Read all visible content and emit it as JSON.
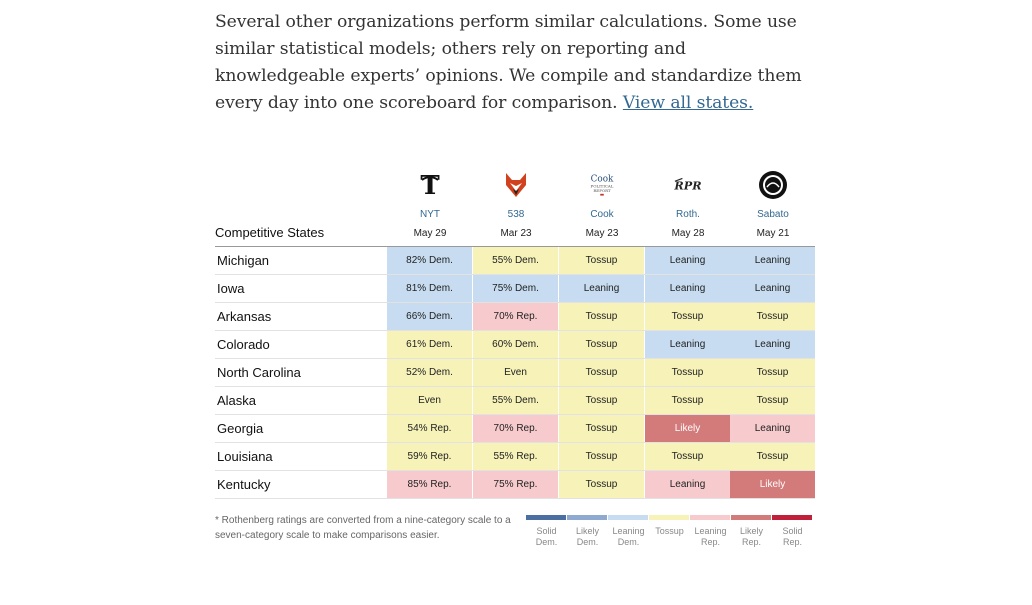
{
  "intro": {
    "text": "Several other organizations perform similar calculations. Some use similar statistical models; others rely on reporting and knowledgeable experts’ opinions. We compile and standardize them every day into one scoreboard for comparison.",
    "link_text": "View all states."
  },
  "chart_data": {
    "type": "table",
    "row_header": "Competitive States",
    "columns": [
      {
        "name": "NYT",
        "date": "May 29",
        "logo": "nyt-logo-icon"
      },
      {
        "name": "538",
        "date": "Mar 23",
        "logo": "fox-logo-icon"
      },
      {
        "name": "Cook",
        "date": "May 23",
        "logo": "cook-political-report-logo-icon"
      },
      {
        "name": "Roth.",
        "date": "May 28",
        "logo": "rpr-logo-icon"
      },
      {
        "name": "Sabato",
        "date": "May 21",
        "logo": "sabato-seal-icon"
      }
    ],
    "rows": [
      {
        "state": "Michigan",
        "cells": [
          {
            "text": "82% Dem.",
            "cat": "lean-dem"
          },
          {
            "text": "55% Dem.",
            "cat": "tossup"
          },
          {
            "text": "Tossup",
            "cat": "tossup"
          },
          {
            "text": "Leaning",
            "cat": "lean-dem"
          },
          {
            "text": "Leaning",
            "cat": "lean-dem"
          }
        ]
      },
      {
        "state": "Iowa",
        "cells": [
          {
            "text": "81% Dem.",
            "cat": "lean-dem"
          },
          {
            "text": "75% Dem.",
            "cat": "lean-dem"
          },
          {
            "text": "Leaning",
            "cat": "lean-dem"
          },
          {
            "text": "Leaning",
            "cat": "lean-dem"
          },
          {
            "text": "Leaning",
            "cat": "lean-dem"
          }
        ]
      },
      {
        "state": "Arkansas",
        "cells": [
          {
            "text": "66% Dem.",
            "cat": "lean-dem"
          },
          {
            "text": "70% Rep.",
            "cat": "lean-rep"
          },
          {
            "text": "Tossup",
            "cat": "tossup"
          },
          {
            "text": "Tossup",
            "cat": "tossup"
          },
          {
            "text": "Tossup",
            "cat": "tossup"
          }
        ]
      },
      {
        "state": "Colorado",
        "cells": [
          {
            "text": "61% Dem.",
            "cat": "tossup"
          },
          {
            "text": "60% Dem.",
            "cat": "tossup"
          },
          {
            "text": "Tossup",
            "cat": "tossup"
          },
          {
            "text": "Leaning",
            "cat": "lean-dem"
          },
          {
            "text": "Leaning",
            "cat": "lean-dem"
          }
        ]
      },
      {
        "state": "North Carolina",
        "cells": [
          {
            "text": "52% Dem.",
            "cat": "tossup"
          },
          {
            "text": "Even",
            "cat": "tossup"
          },
          {
            "text": "Tossup",
            "cat": "tossup"
          },
          {
            "text": "Tossup",
            "cat": "tossup"
          },
          {
            "text": "Tossup",
            "cat": "tossup"
          }
        ]
      },
      {
        "state": "Alaska",
        "cells": [
          {
            "text": "Even",
            "cat": "tossup"
          },
          {
            "text": "55% Dem.",
            "cat": "tossup"
          },
          {
            "text": "Tossup",
            "cat": "tossup"
          },
          {
            "text": "Tossup",
            "cat": "tossup"
          },
          {
            "text": "Tossup",
            "cat": "tossup"
          }
        ]
      },
      {
        "state": "Georgia",
        "cells": [
          {
            "text": "54% Rep.",
            "cat": "tossup"
          },
          {
            "text": "70% Rep.",
            "cat": "lean-rep"
          },
          {
            "text": "Tossup",
            "cat": "tossup"
          },
          {
            "text": "Likely",
            "cat": "likely-rep"
          },
          {
            "text": "Leaning",
            "cat": "lean-rep"
          }
        ]
      },
      {
        "state": "Louisiana",
        "cells": [
          {
            "text": "59% Rep.",
            "cat": "tossup"
          },
          {
            "text": "55% Rep.",
            "cat": "tossup"
          },
          {
            "text": "Tossup",
            "cat": "tossup"
          },
          {
            "text": "Tossup",
            "cat": "tossup"
          },
          {
            "text": "Tossup",
            "cat": "tossup"
          }
        ]
      },
      {
        "state": "Kentucky",
        "cells": [
          {
            "text": "85% Rep.",
            "cat": "lean-rep"
          },
          {
            "text": "75% Rep.",
            "cat": "lean-rep"
          },
          {
            "text": "Tossup",
            "cat": "tossup"
          },
          {
            "text": "Leaning",
            "cat": "lean-rep"
          },
          {
            "text": "Likely",
            "cat": "likely-rep"
          }
        ]
      }
    ],
    "legend": [
      {
        "line1": "Solid",
        "line2": "Dem.",
        "cat": "solid-dem"
      },
      {
        "line1": "Likely",
        "line2": "Dem.",
        "cat": "likely-dem"
      },
      {
        "line1": "Leaning",
        "line2": "Dem.",
        "cat": "lean-dem"
      },
      {
        "line1": "Tossup",
        "line2": "",
        "cat": "tossup"
      },
      {
        "line1": "Leaning",
        "line2": "Rep.",
        "cat": "lean-rep"
      },
      {
        "line1": "Likely",
        "line2": "Rep.",
        "cat": "likely-rep"
      },
      {
        "line1": "Solid",
        "line2": "Rep.",
        "cat": "solid-rep"
      }
    ],
    "colors": {
      "solid-dem": "#4a6fa0",
      "likely-dem": "#8faad0",
      "lean-dem": "#c7dcf0",
      "tossup": "#f6f2b8",
      "lean-rep": "#f7cbcd",
      "likely-rep": "#d37a7a",
      "solid-rep": "#c0203a"
    }
  },
  "footnote": "* Rothenberg ratings are converted from a nine-category scale to a seven-category scale to make comparisons easier."
}
